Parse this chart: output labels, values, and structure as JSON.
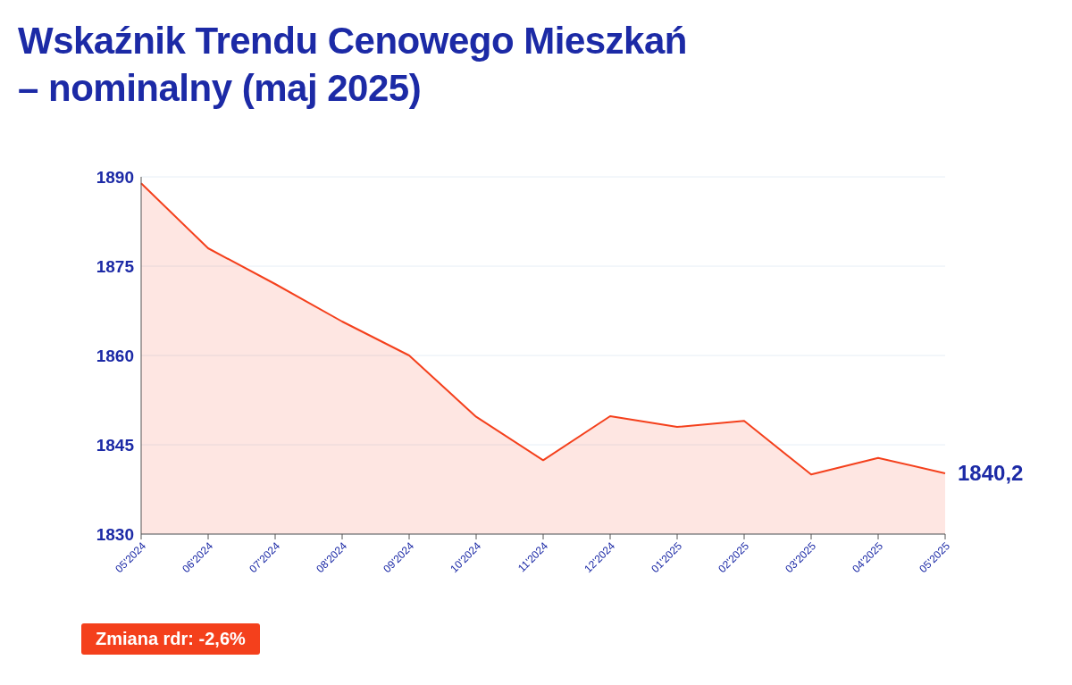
{
  "chart_data": {
    "type": "area",
    "title": "Wskaźnik Trendu Cenowego Mieszkań\n– nominalny (maj 2025)",
    "categories": [
      "05'2024",
      "06'2024",
      "07'2024",
      "08'2024",
      "09'2024",
      "10'2024",
      "11'2024",
      "12'2024",
      "01'2025",
      "02'2025",
      "03'2025",
      "04'2025",
      "05'2025"
    ],
    "series": [
      {
        "color": "#f4401c",
        "values": [
          1888.9,
          1878.0,
          1872.0,
          1865.7,
          1860.0,
          1849.7,
          1842.4,
          1849.8,
          1848.0,
          1849.0,
          1840.0,
          1842.8,
          1840.2
        ],
        "value_labels": [
          null,
          null,
          null,
          null,
          null,
          null,
          null,
          null,
          null,
          null,
          null,
          null,
          "1840,2"
        ]
      }
    ],
    "ylim": [
      1830,
      1890
    ],
    "yticks": [
      1830,
      1845,
      1860,
      1875,
      1890
    ],
    "grid": "y",
    "annotations": [
      "Zmiana rdr: -2,6%"
    ]
  }
}
